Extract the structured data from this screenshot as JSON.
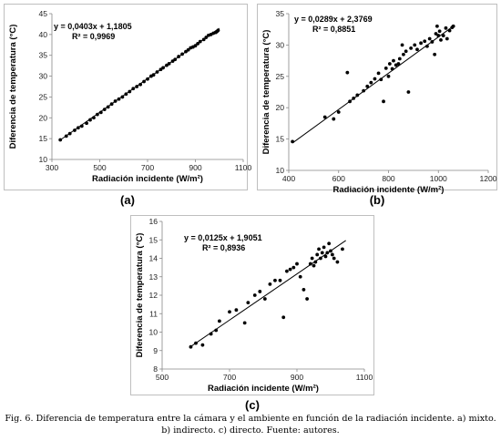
{
  "panels": [
    {
      "id": "a",
      "label": "(a)",
      "chart_data": {
        "type": "scatter",
        "xlabel": "Radiación incidente (W/m²)",
        "ylabel": "Diferencia de temperatura (°C)",
        "xlim": [
          300,
          1100
        ],
        "ylim": [
          10,
          45
        ],
        "xticks": [
          "300",
          "500",
          "700",
          "900",
          "1100"
        ],
        "yticks": [
          "10",
          "15",
          "20",
          "25",
          "30",
          "35",
          "40",
          "45"
        ],
        "equation": "y = 0,0403x + 1,1805",
        "r2": "R² = 0,9969",
        "trend": {
          "slope": 0.0403,
          "intercept": 1.1805,
          "x_range": [
            335,
            1000
          ]
        },
        "points": [
          [
            335,
            14.7
          ],
          [
            360,
            15.6
          ],
          [
            375,
            16.2
          ],
          [
            395,
            17.0
          ],
          [
            410,
            17.6
          ],
          [
            425,
            18.0
          ],
          [
            445,
            18.7
          ],
          [
            460,
            19.5
          ],
          [
            475,
            20.0
          ],
          [
            490,
            20.8
          ],
          [
            505,
            21.3
          ],
          [
            520,
            22.0
          ],
          [
            535,
            22.6
          ],
          [
            550,
            23.3
          ],
          [
            565,
            24.0
          ],
          [
            580,
            24.5
          ],
          [
            595,
            25.0
          ],
          [
            610,
            25.7
          ],
          [
            625,
            26.3
          ],
          [
            640,
            27.0
          ],
          [
            655,
            27.5
          ],
          [
            670,
            28.0
          ],
          [
            685,
            28.7
          ],
          [
            700,
            29.3
          ],
          [
            715,
            30.0
          ],
          [
            725,
            30.3
          ],
          [
            740,
            31.0
          ],
          [
            755,
            31.6
          ],
          [
            765,
            32.0
          ],
          [
            780,
            32.6
          ],
          [
            790,
            33.0
          ],
          [
            805,
            33.6
          ],
          [
            815,
            34.0
          ],
          [
            830,
            34.7
          ],
          [
            845,
            35.3
          ],
          [
            860,
            35.9
          ],
          [
            870,
            36.3
          ],
          [
            880,
            36.8
          ],
          [
            890,
            37.0
          ],
          [
            900,
            37.3
          ],
          [
            910,
            37.8
          ],
          [
            920,
            38.3
          ],
          [
            935,
            38.8
          ],
          [
            945,
            39.3
          ],
          [
            955,
            39.8
          ],
          [
            965,
            40.0
          ],
          [
            975,
            40.3
          ],
          [
            985,
            40.5
          ],
          [
            990,
            40.7
          ],
          [
            995,
            41.0
          ]
        ]
      }
    },
    {
      "id": "b",
      "label": "(b)",
      "chart_data": {
        "type": "scatter",
        "xlabel": "Radiación incidente (W/m²)",
        "ylabel": "Diferencia de temperatura (°C)",
        "xlim": [
          400,
          1200
        ],
        "ylim": [
          10,
          35
        ],
        "xticks": [
          "400",
          "600",
          "800",
          "1000",
          "1200"
        ],
        "yticks": [
          "10",
          "15",
          "20",
          "25",
          "30",
          "35"
        ],
        "equation": "y = 0,0289x + 2,3769",
        "r2": "R² = 0,8851",
        "trend": {
          "slope": 0.0289,
          "intercept": 2.3769,
          "x_range": [
            415,
            1065
          ]
        },
        "points": [
          [
            415,
            14.6
          ],
          [
            545,
            18.5
          ],
          [
            580,
            18.2
          ],
          [
            600,
            19.3
          ],
          [
            635,
            25.6
          ],
          [
            645,
            21.0
          ],
          [
            660,
            21.5
          ],
          [
            675,
            22.0
          ],
          [
            700,
            22.7
          ],
          [
            715,
            23.4
          ],
          [
            730,
            24.0
          ],
          [
            745,
            24.6
          ],
          [
            760,
            25.5
          ],
          [
            770,
            24.5
          ],
          [
            780,
            21.0
          ],
          [
            790,
            26.3
          ],
          [
            800,
            25.0
          ],
          [
            805,
            27.0
          ],
          [
            815,
            26.2
          ],
          [
            820,
            27.5
          ],
          [
            830,
            26.8
          ],
          [
            840,
            27.0
          ],
          [
            845,
            27.8
          ],
          [
            855,
            30.0
          ],
          [
            860,
            28.5
          ],
          [
            870,
            29.0
          ],
          [
            880,
            22.5
          ],
          [
            890,
            29.5
          ],
          [
            905,
            30.0
          ],
          [
            915,
            29.3
          ],
          [
            930,
            30.3
          ],
          [
            945,
            30.6
          ],
          [
            955,
            29.8
          ],
          [
            965,
            31.0
          ],
          [
            975,
            30.5
          ],
          [
            985,
            28.5
          ],
          [
            990,
            31.8
          ],
          [
            995,
            33.0
          ],
          [
            1000,
            31.5
          ],
          [
            1005,
            32.2
          ],
          [
            1010,
            30.8
          ],
          [
            1020,
            31.5
          ],
          [
            1030,
            32.7
          ],
          [
            1035,
            31.0
          ],
          [
            1045,
            32.3
          ],
          [
            1055,
            32.8
          ],
          [
            1060,
            33.0
          ]
        ]
      }
    },
    {
      "id": "c",
      "label": "(c)",
      "chart_data": {
        "type": "scatter",
        "xlabel": "Radiación incidente (W/m²)",
        "ylabel": "Diferencia de temperatura (°C)",
        "xlim": [
          500,
          1100
        ],
        "ylim": [
          8,
          16
        ],
        "xticks": [
          "500",
          "700",
          "900",
          "1100"
        ],
        "yticks": [
          "8",
          "9",
          "10",
          "11",
          "12",
          "13",
          "14",
          "15",
          "16"
        ],
        "equation": "y = 0,0125x + 1,9051",
        "r2": "R² = 0,8936",
        "trend": {
          "slope": 0.0125,
          "intercept": 1.9051,
          "x_range": [
            585,
            1045
          ]
        },
        "points": [
          [
            585,
            9.2
          ],
          [
            600,
            9.4
          ],
          [
            620,
            9.3
          ],
          [
            645,
            9.9
          ],
          [
            660,
            10.1
          ],
          [
            670,
            10.6
          ],
          [
            700,
            11.1
          ],
          [
            720,
            11.2
          ],
          [
            745,
            10.5
          ],
          [
            755,
            11.6
          ],
          [
            775,
            12.0
          ],
          [
            790,
            12.2
          ],
          [
            805,
            11.8
          ],
          [
            820,
            12.6
          ],
          [
            835,
            12.8
          ],
          [
            850,
            12.8
          ],
          [
            860,
            10.8
          ],
          [
            870,
            13.3
          ],
          [
            880,
            13.4
          ],
          [
            890,
            13.5
          ],
          [
            900,
            13.7
          ],
          [
            910,
            13.0
          ],
          [
            920,
            12.3
          ],
          [
            930,
            11.8
          ],
          [
            940,
            13.7
          ],
          [
            945,
            14.0
          ],
          [
            950,
            13.6
          ],
          [
            955,
            13.8
          ],
          [
            960,
            14.2
          ],
          [
            965,
            14.5
          ],
          [
            970,
            14.0
          ],
          [
            975,
            14.3
          ],
          [
            980,
            14.6
          ],
          [
            985,
            14.1
          ],
          [
            990,
            14.3
          ],
          [
            995,
            14.8
          ],
          [
            1000,
            14.4
          ],
          [
            1005,
            14.2
          ],
          [
            1010,
            14.0
          ],
          [
            1020,
            13.8
          ],
          [
            1035,
            14.5
          ]
        ]
      }
    }
  ],
  "caption": {
    "line1": "Fig. 6. Diferencia de temperatura entre la cámara y el ambiente en función de la radiación incidente. a) mixto.",
    "line2": "b) indirecto. c) directo. Fuente: autores."
  }
}
